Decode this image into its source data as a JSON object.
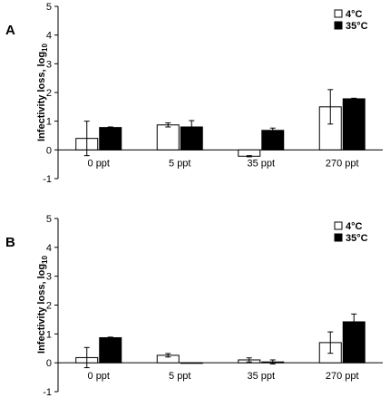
{
  "chart_data": [
    {
      "panel": "A",
      "type": "bar",
      "ylabel": "Infectivity loss, log",
      "ylabel_sub": "10",
      "ylim": [
        -1,
        5
      ],
      "yticks": [
        "-1",
        "0",
        "1",
        "2",
        "3",
        "4",
        "5"
      ],
      "categories": [
        "0 ppt",
        "5 ppt",
        "35 ppt",
        "270 ppt"
      ],
      "legend_position": "top-right",
      "series": [
        {
          "name": "4°C",
          "color": "#ffffff",
          "values": [
            0.4,
            0.87,
            -0.22,
            1.5
          ],
          "errors": [
            0.6,
            0.07,
            0.02,
            0.6
          ]
        },
        {
          "name": "35°C",
          "color": "#000000",
          "values": [
            0.78,
            0.8,
            0.68,
            1.78
          ],
          "errors": [
            0.02,
            0.22,
            0.08,
            0.02
          ]
        }
      ]
    },
    {
      "panel": "B",
      "type": "bar",
      "ylabel": "Infectivity loss, log",
      "ylabel_sub": "10",
      "ylim": [
        -1,
        5
      ],
      "yticks": [
        "-1",
        "0",
        "1",
        "2",
        "3",
        "4",
        "5"
      ],
      "categories": [
        "0 ppt",
        "5 ppt",
        "35 ppt",
        "270 ppt"
      ],
      "legend_position": "top-right",
      "series": [
        {
          "name": "4°C",
          "color": "#ffffff",
          "values": [
            0.18,
            0.26,
            0.1,
            0.7
          ],
          "errors": [
            0.35,
            0.06,
            0.07,
            0.37
          ]
        },
        {
          "name": "35°C",
          "color": "#000000",
          "values": [
            0.87,
            0.0,
            0.03,
            1.42
          ],
          "errors": [
            0.02,
            0.0,
            0.07,
            0.27
          ]
        }
      ]
    }
  ]
}
